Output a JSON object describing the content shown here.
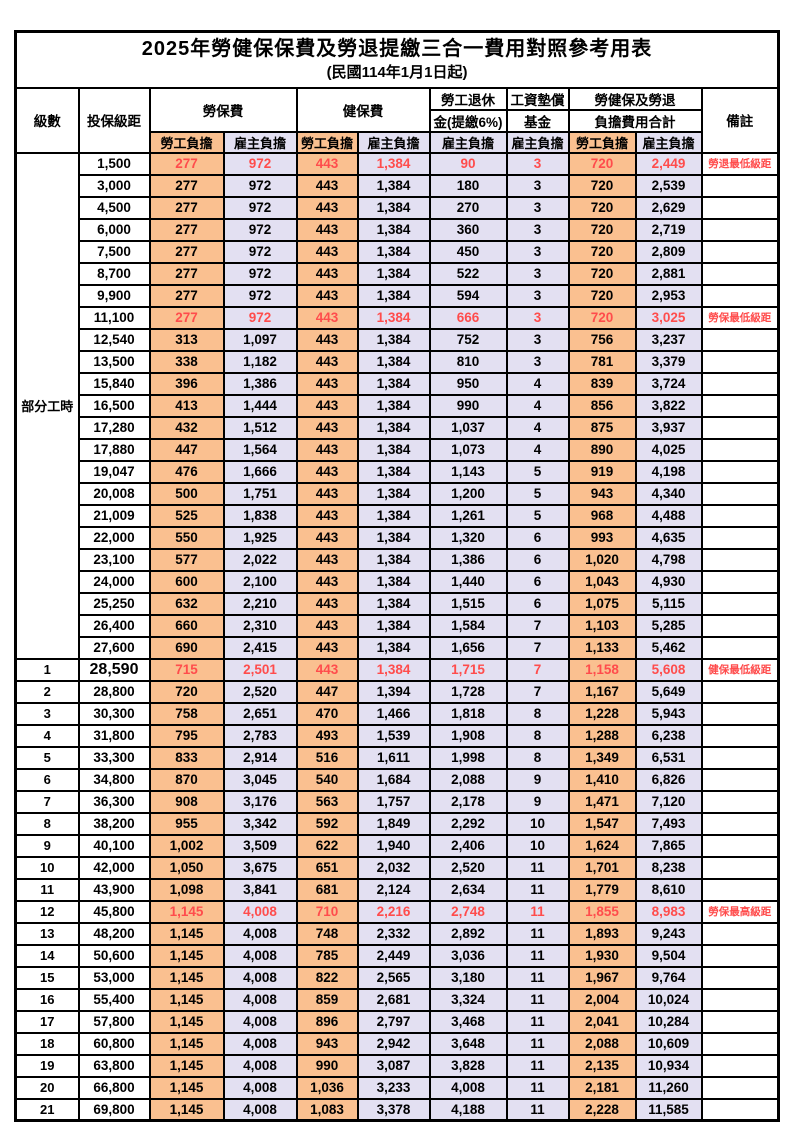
{
  "title": "2025年勞健保保費及勞退提繳三合一費用對照參考用表",
  "subtitle": "(民國114年1月1日起)",
  "colors": {
    "employee_fill": "#FAC090",
    "employer_fill": "#E3E0F2",
    "highlight_text": "#FF4C4C",
    "border": "#000000"
  },
  "header": {
    "level": "級數",
    "bracket": "投保級距",
    "labor_insurance": "勞保費",
    "health_insurance": "健保費",
    "pension_line1": "勞工退休",
    "pension_line2": "金(提繳6%)",
    "wage_fund_line1": "工資墊償",
    "wage_fund_line2": "基金",
    "total_line1": "勞健保及勞退",
    "total_line2": "負擔費用合計",
    "remark": "備註",
    "employee": "勞工負擔",
    "employer": "雇主負擔"
  },
  "group": {
    "label": "部分工時",
    "row_count": 23
  },
  "rows": [
    {
      "level": "",
      "bracket": "1,500",
      "values": [
        "277",
        "972",
        "443",
        "1,384",
        "90",
        "3",
        "720",
        "2,449"
      ],
      "remark": "勞退最低級距",
      "red": true
    },
    {
      "level": "",
      "bracket": "3,000",
      "values": [
        "277",
        "972",
        "443",
        "1,384",
        "180",
        "3",
        "720",
        "2,539"
      ],
      "remark": "",
      "red": false
    },
    {
      "level": "",
      "bracket": "4,500",
      "values": [
        "277",
        "972",
        "443",
        "1,384",
        "270",
        "3",
        "720",
        "2,629"
      ],
      "remark": "",
      "red": false
    },
    {
      "level": "",
      "bracket": "6,000",
      "values": [
        "277",
        "972",
        "443",
        "1,384",
        "360",
        "3",
        "720",
        "2,719"
      ],
      "remark": "",
      "red": false
    },
    {
      "level": "",
      "bracket": "7,500",
      "values": [
        "277",
        "972",
        "443",
        "1,384",
        "450",
        "3",
        "720",
        "2,809"
      ],
      "remark": "",
      "red": false
    },
    {
      "level": "",
      "bracket": "8,700",
      "values": [
        "277",
        "972",
        "443",
        "1,384",
        "522",
        "3",
        "720",
        "2,881"
      ],
      "remark": "",
      "red": false
    },
    {
      "level": "",
      "bracket": "9,900",
      "values": [
        "277",
        "972",
        "443",
        "1,384",
        "594",
        "3",
        "720",
        "2,953"
      ],
      "remark": "",
      "red": false
    },
    {
      "level": "",
      "bracket": "11,100",
      "values": [
        "277",
        "972",
        "443",
        "1,384",
        "666",
        "3",
        "720",
        "3,025"
      ],
      "remark": "勞保最低級距",
      "red": true
    },
    {
      "level": "",
      "bracket": "12,540",
      "values": [
        "313",
        "1,097",
        "443",
        "1,384",
        "752",
        "3",
        "756",
        "3,237"
      ],
      "remark": "",
      "red": false
    },
    {
      "level": "",
      "bracket": "13,500",
      "values": [
        "338",
        "1,182",
        "443",
        "1,384",
        "810",
        "3",
        "781",
        "3,379"
      ],
      "remark": "",
      "red": false
    },
    {
      "level": "",
      "bracket": "15,840",
      "values": [
        "396",
        "1,386",
        "443",
        "1,384",
        "950",
        "4",
        "839",
        "3,724"
      ],
      "remark": "",
      "red": false
    },
    {
      "level": "",
      "bracket": "16,500",
      "values": [
        "413",
        "1,444",
        "443",
        "1,384",
        "990",
        "4",
        "856",
        "3,822"
      ],
      "remark": "",
      "red": false
    },
    {
      "level": "",
      "bracket": "17,280",
      "values": [
        "432",
        "1,512",
        "443",
        "1,384",
        "1,037",
        "4",
        "875",
        "3,937"
      ],
      "remark": "",
      "red": false
    },
    {
      "level": "",
      "bracket": "17,880",
      "values": [
        "447",
        "1,564",
        "443",
        "1,384",
        "1,073",
        "4",
        "890",
        "4,025"
      ],
      "remark": "",
      "red": false
    },
    {
      "level": "",
      "bracket": "19,047",
      "values": [
        "476",
        "1,666",
        "443",
        "1,384",
        "1,143",
        "5",
        "919",
        "4,198"
      ],
      "remark": "",
      "red": false
    },
    {
      "level": "",
      "bracket": "20,008",
      "values": [
        "500",
        "1,751",
        "443",
        "1,384",
        "1,200",
        "5",
        "943",
        "4,340"
      ],
      "remark": "",
      "red": false
    },
    {
      "level": "",
      "bracket": "21,009",
      "values": [
        "525",
        "1,838",
        "443",
        "1,384",
        "1,261",
        "5",
        "968",
        "4,488"
      ],
      "remark": "",
      "red": false
    },
    {
      "level": "",
      "bracket": "22,000",
      "values": [
        "550",
        "1,925",
        "443",
        "1,384",
        "1,320",
        "6",
        "993",
        "4,635"
      ],
      "remark": "",
      "red": false
    },
    {
      "level": "",
      "bracket": "23,100",
      "values": [
        "577",
        "2,022",
        "443",
        "1,384",
        "1,386",
        "6",
        "1,020",
        "4,798"
      ],
      "remark": "",
      "red": false
    },
    {
      "level": "",
      "bracket": "24,000",
      "values": [
        "600",
        "2,100",
        "443",
        "1,384",
        "1,440",
        "6",
        "1,043",
        "4,930"
      ],
      "remark": "",
      "red": false
    },
    {
      "level": "",
      "bracket": "25,250",
      "values": [
        "632",
        "2,210",
        "443",
        "1,384",
        "1,515",
        "6",
        "1,075",
        "5,115"
      ],
      "remark": "",
      "red": false
    },
    {
      "level": "",
      "bracket": "26,400",
      "values": [
        "660",
        "2,310",
        "443",
        "1,384",
        "1,584",
        "7",
        "1,103",
        "5,285"
      ],
      "remark": "",
      "red": false
    },
    {
      "level": "",
      "bracket": "27,600",
      "values": [
        "690",
        "2,415",
        "443",
        "1,384",
        "1,656",
        "7",
        "1,133",
        "5,462"
      ],
      "remark": "",
      "red": false
    },
    {
      "level": "1",
      "bracket": "28,590",
      "values": [
        "715",
        "2,501",
        "443",
        "1,384",
        "1,715",
        "7",
        "1,158",
        "5,608"
      ],
      "remark": "健保最低級距",
      "red": true,
      "big_bracket": true
    },
    {
      "level": "2",
      "bracket": "28,800",
      "values": [
        "720",
        "2,520",
        "447",
        "1,394",
        "1,728",
        "7",
        "1,167",
        "5,649"
      ],
      "remark": "",
      "red": false
    },
    {
      "level": "3",
      "bracket": "30,300",
      "values": [
        "758",
        "2,651",
        "470",
        "1,466",
        "1,818",
        "8",
        "1,228",
        "5,943"
      ],
      "remark": "",
      "red": false
    },
    {
      "level": "4",
      "bracket": "31,800",
      "values": [
        "795",
        "2,783",
        "493",
        "1,539",
        "1,908",
        "8",
        "1,288",
        "6,238"
      ],
      "remark": "",
      "red": false
    },
    {
      "level": "5",
      "bracket": "33,300",
      "values": [
        "833",
        "2,914",
        "516",
        "1,611",
        "1,998",
        "8",
        "1,349",
        "6,531"
      ],
      "remark": "",
      "red": false
    },
    {
      "level": "6",
      "bracket": "34,800",
      "values": [
        "870",
        "3,045",
        "540",
        "1,684",
        "2,088",
        "9",
        "1,410",
        "6,826"
      ],
      "remark": "",
      "red": false
    },
    {
      "level": "7",
      "bracket": "36,300",
      "values": [
        "908",
        "3,176",
        "563",
        "1,757",
        "2,178",
        "9",
        "1,471",
        "7,120"
      ],
      "remark": "",
      "red": false
    },
    {
      "level": "8",
      "bracket": "38,200",
      "values": [
        "955",
        "3,342",
        "592",
        "1,849",
        "2,292",
        "10",
        "1,547",
        "7,493"
      ],
      "remark": "",
      "red": false
    },
    {
      "level": "9",
      "bracket": "40,100",
      "values": [
        "1,002",
        "3,509",
        "622",
        "1,940",
        "2,406",
        "10",
        "1,624",
        "7,865"
      ],
      "remark": "",
      "red": false
    },
    {
      "level": "10",
      "bracket": "42,000",
      "values": [
        "1,050",
        "3,675",
        "651",
        "2,032",
        "2,520",
        "11",
        "1,701",
        "8,238"
      ],
      "remark": "",
      "red": false
    },
    {
      "level": "11",
      "bracket": "43,900",
      "values": [
        "1,098",
        "3,841",
        "681",
        "2,124",
        "2,634",
        "11",
        "1,779",
        "8,610"
      ],
      "remark": "",
      "red": false
    },
    {
      "level": "12",
      "bracket": "45,800",
      "values": [
        "1,145",
        "4,008",
        "710",
        "2,216",
        "2,748",
        "11",
        "1,855",
        "8,983"
      ],
      "remark": "勞保最高級距",
      "red": true
    },
    {
      "level": "13",
      "bracket": "48,200",
      "values": [
        "1,145",
        "4,008",
        "748",
        "2,332",
        "2,892",
        "11",
        "1,893",
        "9,243"
      ],
      "remark": "",
      "red": false
    },
    {
      "level": "14",
      "bracket": "50,600",
      "values": [
        "1,145",
        "4,008",
        "785",
        "2,449",
        "3,036",
        "11",
        "1,930",
        "9,504"
      ],
      "remark": "",
      "red": false
    },
    {
      "level": "15",
      "bracket": "53,000",
      "values": [
        "1,145",
        "4,008",
        "822",
        "2,565",
        "3,180",
        "11",
        "1,967",
        "9,764"
      ],
      "remark": "",
      "red": false
    },
    {
      "level": "16",
      "bracket": "55,400",
      "values": [
        "1,145",
        "4,008",
        "859",
        "2,681",
        "3,324",
        "11",
        "2,004",
        "10,024"
      ],
      "remark": "",
      "red": false
    },
    {
      "level": "17",
      "bracket": "57,800",
      "values": [
        "1,145",
        "4,008",
        "896",
        "2,797",
        "3,468",
        "11",
        "2,041",
        "10,284"
      ],
      "remark": "",
      "red": false
    },
    {
      "level": "18",
      "bracket": "60,800",
      "values": [
        "1,145",
        "4,008",
        "943",
        "2,942",
        "3,648",
        "11",
        "2,088",
        "10,609"
      ],
      "remark": "",
      "red": false
    },
    {
      "level": "19",
      "bracket": "63,800",
      "values": [
        "1,145",
        "4,008",
        "990",
        "3,087",
        "3,828",
        "11",
        "2,135",
        "10,934"
      ],
      "remark": "",
      "red": false
    },
    {
      "level": "20",
      "bracket": "66,800",
      "values": [
        "1,145",
        "4,008",
        "1,036",
        "3,233",
        "4,008",
        "11",
        "2,181",
        "11,260"
      ],
      "remark": "",
      "red": false
    },
    {
      "level": "21",
      "bracket": "69,800",
      "values": [
        "1,145",
        "4,008",
        "1,083",
        "3,378",
        "4,188",
        "11",
        "2,228",
        "11,585"
      ],
      "remark": "",
      "red": false
    }
  ]
}
